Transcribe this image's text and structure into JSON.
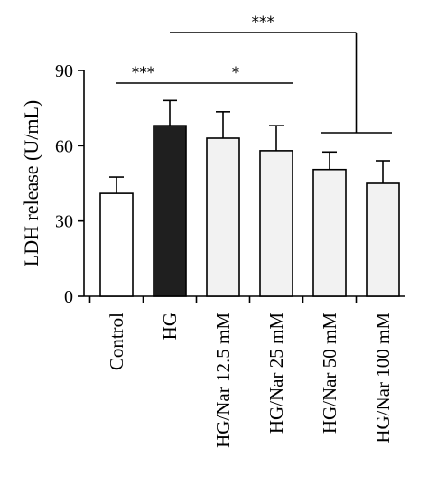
{
  "chart_data": {
    "type": "bar",
    "title": "",
    "xlabel": "",
    "ylabel": "LDH release (U/mL)",
    "ylim": [
      0,
      90
    ],
    "yticks": [
      0,
      30,
      60,
      90
    ],
    "grid": false,
    "categories": [
      "Control",
      "HG",
      "HG/Nar 12.5 mM",
      "HG/Nar 25 mM",
      "HG/Nar 50 mM",
      "HG/Nar 100 mM"
    ],
    "values": [
      41,
      68,
      63,
      58,
      50.5,
      45
    ],
    "errors": [
      6.5,
      10,
      10.5,
      10,
      7,
      9
    ],
    "colors": [
      "#ffffff",
      "#1f1f1f",
      "#f2f2f2",
      "#f2f2f2",
      "#f2f2f2",
      "#f2f2f2"
    ],
    "significance": [
      {
        "label": "***",
        "from": "Control",
        "to": "HG"
      },
      {
        "label": "*",
        "from": "HG",
        "to": "HG/Nar 25 mM"
      },
      {
        "label": "***",
        "from": "HG",
        "to": [
          "HG/Nar 50 mM",
          "HG/Nar 100 mM"
        ]
      }
    ]
  }
}
